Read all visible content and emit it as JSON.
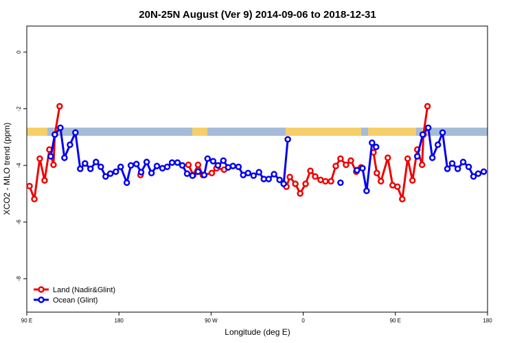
{
  "chart_data": {
    "type": "line",
    "title": "20N-25N August (Ver 9)   2014-09-06 to 2018-12-31",
    "x_label": "Longitude (deg E)",
    "y_label": "XCO2 - MLO trend (ppm)",
    "xlim": [
      90,
      540
    ],
    "ylim": [
      -9.18,
      0.92
    ],
    "xticks": [
      {
        "value": 90,
        "label": "90 E"
      },
      {
        "value": 180,
        "label": "180"
      },
      {
        "value": 270,
        "label": "90 W"
      },
      {
        "value": 360,
        "label": "0"
      },
      {
        "value": 450,
        "label": "90 E"
      },
      {
        "value": 540,
        "label": "180"
      }
    ],
    "yticks": [
      0,
      -2,
      -4,
      -6,
      -8
    ],
    "legend": "bottom-left",
    "series": [
      {
        "name": "Land (Nadir&Glint)",
        "color": "#ee0000",
        "x": [
          92.7,
          97.4,
          102.7,
          107.4,
          112.1,
          116.1,
          117.4,
          122.1,
          null,
          201.1,
          null,
          247.9,
          252.6,
          257.3,
          262.0,
          270.7,
          275.3,
          282.7,
          null,
          343.6,
          346.9,
          352.3,
          357.0,
          362.3,
          367.0,
          371.7,
          377.0,
          381.7,
          387.1,
          391.8,
          396.4,
          401.8,
          406.5,
          411.8,
          416.5,
          null,
          428.6,
          431.9,
          435.9,
          442.6,
          447.3,
          452.0,
          456.7,
          462.0,
          466.7,
          471.4,
          476.1,
          477.4,
          481.4
        ],
        "values": [
          -4.73,
          -5.19,
          -3.76,
          -4.53,
          -3.44,
          -3.98,
          -2.91,
          -1.91,
          null,
          -4.34,
          null,
          -3.98,
          -4.34,
          -3.98,
          -4.34,
          -4.27,
          -4.1,
          -4.15,
          null,
          -4.75,
          -4.41,
          -4.65,
          -4.99,
          -4.65,
          -4.19,
          -4.39,
          -4.51,
          -4.56,
          -4.56,
          -4.02,
          -3.76,
          -3.98,
          -3.83,
          -4.22,
          -4.07,
          null,
          -3.54,
          -4.27,
          -4.56,
          -3.73,
          -4.7,
          -4.75,
          -5.19,
          -3.76,
          -4.53,
          -3.44,
          -3.98,
          -2.91,
          -1.91
        ]
      },
      {
        "name": "Ocean (Glint)",
        "color": "#0000ee",
        "x": [
          113.4,
          117.4,
          122.8,
          126.8,
          132.2,
          137.5,
          142.2,
          146.9,
          152.2,
          157.6,
          162.3,
          167.0,
          171.6,
          177.0,
          181.7,
          187.7,
          191.7,
          197.1,
          201.7,
          207.1,
          211.8,
          217.1,
          222.5,
          227.2,
          231.9,
          237.2,
          241.9,
          246.6,
          251.9,
          257.3,
          263.3,
          266.6,
          272.0,
          276.7,
          282.0,
          286.7,
          291.4,
          296.8,
          301.4,
          306.1,
          311.5,
          316.8,
          321.5,
          326.2,
          331.5,
          336.9,
          340.9,
          344.9,
          null,
          396.4,
          null,
          412.5,
          417.9,
          421.9,
          427.2,
          431.2,
          null,
          471.4,
          476.7,
          482.1,
          486.1,
          491.5,
          496.1,
          500.8,
          505.5,
          510.9,
          516.2,
          521.6,
          526.3,
          530.9,
          536.3
        ],
        "values": [
          -3.68,
          -2.91,
          -2.67,
          -3.73,
          -3.27,
          -2.84,
          -4.12,
          -3.93,
          -4.12,
          -3.88,
          -4.05,
          -4.39,
          -4.29,
          -4.22,
          -4.05,
          -4.61,
          -4.0,
          -3.95,
          -4.24,
          -3.88,
          -4.27,
          -4.02,
          -4.1,
          -4.05,
          -3.9,
          -3.9,
          -4.0,
          -4.29,
          -4.36,
          -4.22,
          -4.34,
          -3.76,
          -3.85,
          -4.0,
          -3.83,
          -4.07,
          -4.02,
          -4.05,
          -4.34,
          -4.27,
          -4.36,
          -4.24,
          -4.48,
          -4.48,
          -4.31,
          -4.51,
          -4.65,
          -3.08,
          null,
          -4.61,
          null,
          -4.17,
          -4.1,
          -4.9,
          -3.2,
          -3.35,
          null,
          -3.68,
          -2.91,
          -2.67,
          -3.73,
          -3.27,
          -2.84,
          -4.12,
          -3.93,
          -4.12,
          -3.88,
          -4.05,
          -4.39,
          -4.29,
          -4.22
        ]
      }
    ]
  }
}
